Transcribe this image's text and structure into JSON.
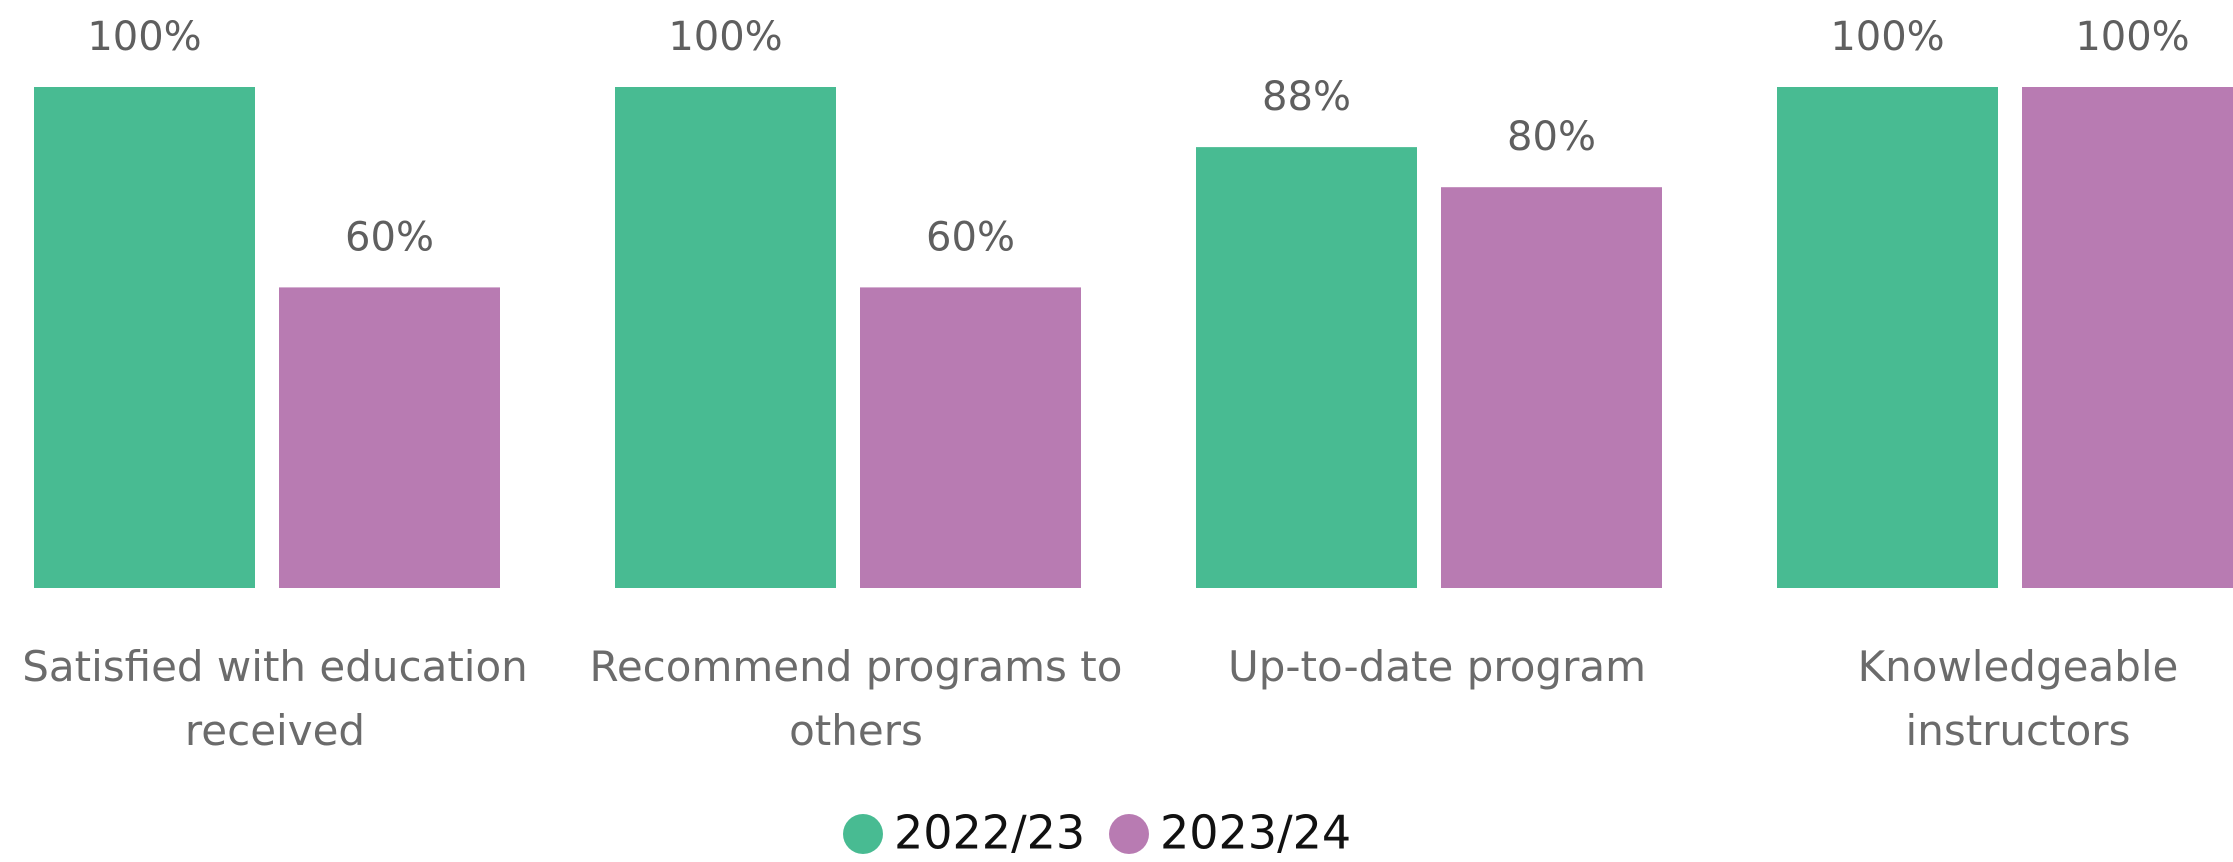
{
  "chart_data": {
    "type": "bar",
    "categories": [
      "Satisfied with education received",
      "Recommend programs to others",
      "Up-to-date program",
      "Knowledgeable instructors"
    ],
    "series": [
      {
        "name": "2022/23",
        "color": "#48bb92",
        "values": [
          100,
          100,
          88,
          100
        ],
        "value_labels": [
          "100%",
          "100%",
          "88%",
          "100%"
        ]
      },
      {
        "name": "2023/24",
        "color": "#b87bb2",
        "values": [
          60,
          60,
          80,
          100
        ],
        "value_labels": [
          "60%",
          "60%",
          "80%",
          "100%"
        ]
      }
    ],
    "ylim": [
      0,
      100
    ]
  }
}
